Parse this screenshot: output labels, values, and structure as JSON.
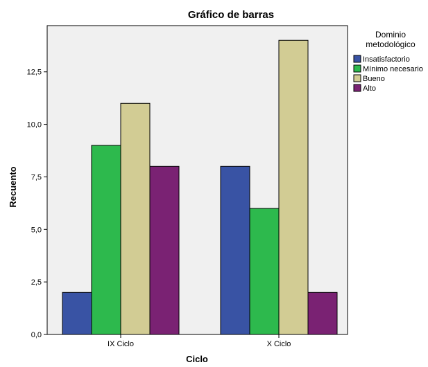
{
  "chart_data": {
    "type": "bar",
    "title": "Gráfico de barras",
    "xlabel": "Ciclo",
    "ylabel": "Recuento",
    "categories": [
      "IX Ciclo",
      "X Ciclo"
    ],
    "series": [
      {
        "name": "Insatisfactorio",
        "values": [
          2,
          8
        ]
      },
      {
        "name": "Mínimo necesario",
        "values": [
          9,
          6
        ]
      },
      {
        "name": "Bueno",
        "values": [
          11,
          14
        ]
      },
      {
        "name": "Alto",
        "values": [
          8,
          2
        ]
      }
    ],
    "colors": [
      "#3953a4",
      "#2db94d",
      "#d2cc94",
      "#7a2273"
    ],
    "plot_background": "#f0f0f0",
    "ylim": [
      0,
      14.7
    ],
    "yticks": [
      0,
      2.5,
      5,
      7.5,
      10,
      12.5
    ],
    "ytick_labels": [
      "0,0",
      "2,5",
      "5,0",
      "7,5",
      "10,0",
      "12,5"
    ],
    "legend": {
      "title_lines": [
        "Dominio",
        "metodológico"
      ],
      "placement": "right-top"
    },
    "grid": false
  }
}
